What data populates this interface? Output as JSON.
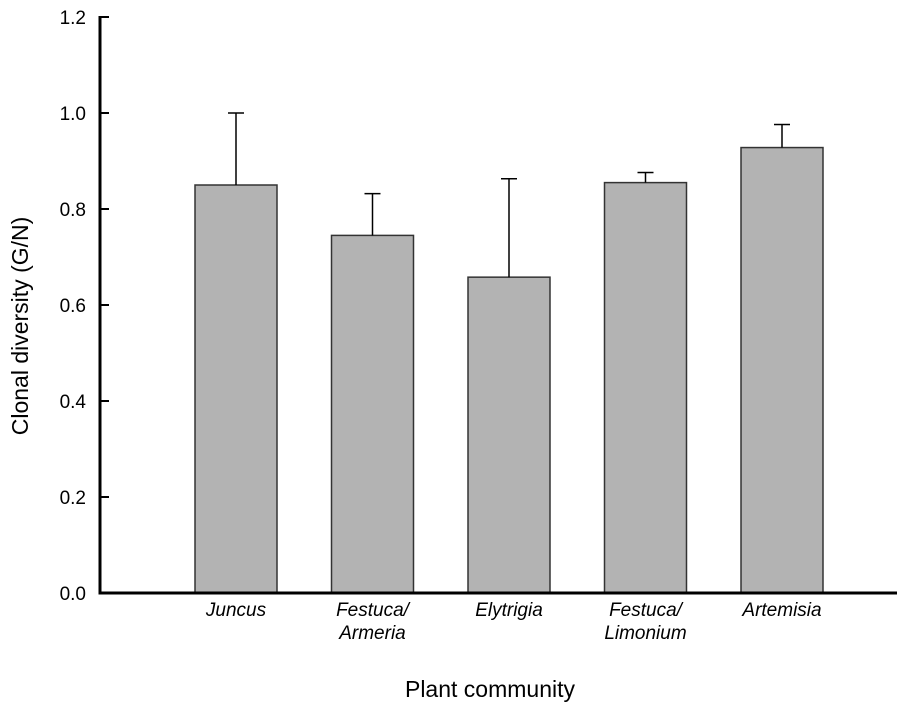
{
  "chart_data": {
    "type": "bar",
    "xlabel": "Plant community",
    "ylabel": "Clonal diversity (G/N)",
    "ylim": [
      0,
      1.2
    ],
    "yticks": [
      "0.0",
      "0.2",
      "0.4",
      "0.6",
      "0.8",
      "1.0",
      "1.2"
    ],
    "categories": [
      [
        "Juncus"
      ],
      [
        "Festuca/",
        "Armeria"
      ],
      [
        "Elytrigia"
      ],
      [
        "Festuca/",
        "Limonium"
      ],
      [
        "Artemisia"
      ]
    ],
    "values": [
      0.85,
      0.745,
      0.658,
      0.855,
      0.928
    ],
    "error_upper": [
      1.0,
      0.832,
      0.863,
      0.876,
      0.976
    ],
    "bar_color": "#b3b3b3",
    "bar_edge_color": "#333333",
    "grid": false
  }
}
